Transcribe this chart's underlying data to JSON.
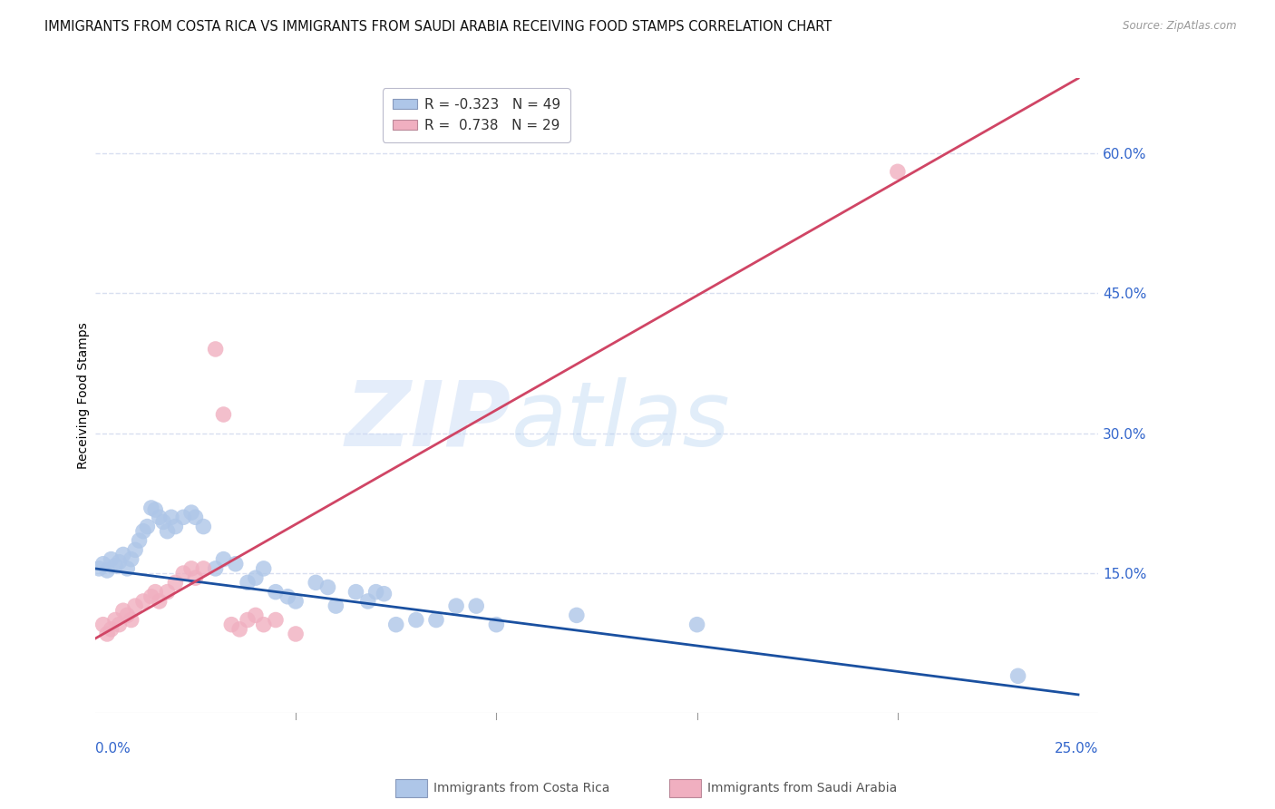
{
  "title": "IMMIGRANTS FROM COSTA RICA VS IMMIGRANTS FROM SAUDI ARABIA RECEIVING FOOD STAMPS CORRELATION CHART",
  "source": "Source: ZipAtlas.com",
  "ylabel": "Receiving Food Stamps",
  "xtick_left_label": "0.0%",
  "xtick_right_label": "25.0%",
  "ytick_vals": [
    0.0,
    0.15,
    0.3,
    0.45,
    0.6
  ],
  "ytick_labels": [
    "",
    "15.0%",
    "30.0%",
    "45.0%",
    "60.0%"
  ],
  "xlim": [
    0.0,
    0.25
  ],
  "ylim": [
    0.0,
    0.68
  ],
  "watermark_zip": "ZIP",
  "watermark_atlas": "atlas",
  "cr_color": "#aec6e8",
  "sa_color": "#f0afc0",
  "cr_line_color": "#1a50a0",
  "sa_line_color": "#d04565",
  "legend_cr_label": "R = -0.323   N = 49",
  "legend_sa_label": "R =  0.738   N = 29",
  "cr_line_x0": 0.0,
  "cr_line_y0": 0.155,
  "cr_line_x1": 0.245,
  "cr_line_y1": 0.02,
  "sa_line_x0": 0.0,
  "sa_line_y0": 0.08,
  "sa_line_x1": 0.245,
  "sa_line_y1": 0.68,
  "cr_points": [
    [
      0.001,
      0.155
    ],
    [
      0.002,
      0.16
    ],
    [
      0.003,
      0.153
    ],
    [
      0.004,
      0.165
    ],
    [
      0.005,
      0.158
    ],
    [
      0.006,
      0.162
    ],
    [
      0.007,
      0.17
    ],
    [
      0.008,
      0.155
    ],
    [
      0.009,
      0.165
    ],
    [
      0.01,
      0.175
    ],
    [
      0.011,
      0.185
    ],
    [
      0.012,
      0.195
    ],
    [
      0.013,
      0.2
    ],
    [
      0.014,
      0.22
    ],
    [
      0.015,
      0.218
    ],
    [
      0.016,
      0.21
    ],
    [
      0.017,
      0.205
    ],
    [
      0.018,
      0.195
    ],
    [
      0.019,
      0.21
    ],
    [
      0.02,
      0.2
    ],
    [
      0.022,
      0.21
    ],
    [
      0.024,
      0.215
    ],
    [
      0.025,
      0.21
    ],
    [
      0.027,
      0.2
    ],
    [
      0.03,
      0.155
    ],
    [
      0.032,
      0.165
    ],
    [
      0.035,
      0.16
    ],
    [
      0.038,
      0.14
    ],
    [
      0.04,
      0.145
    ],
    [
      0.042,
      0.155
    ],
    [
      0.045,
      0.13
    ],
    [
      0.048,
      0.125
    ],
    [
      0.05,
      0.12
    ],
    [
      0.055,
      0.14
    ],
    [
      0.058,
      0.135
    ],
    [
      0.06,
      0.115
    ],
    [
      0.065,
      0.13
    ],
    [
      0.068,
      0.12
    ],
    [
      0.07,
      0.13
    ],
    [
      0.072,
      0.128
    ],
    [
      0.075,
      0.095
    ],
    [
      0.08,
      0.1
    ],
    [
      0.085,
      0.1
    ],
    [
      0.09,
      0.115
    ],
    [
      0.095,
      0.115
    ],
    [
      0.1,
      0.095
    ],
    [
      0.12,
      0.105
    ],
    [
      0.15,
      0.095
    ],
    [
      0.23,
      0.04
    ]
  ],
  "sa_points": [
    [
      0.002,
      0.095
    ],
    [
      0.003,
      0.085
    ],
    [
      0.004,
      0.09
    ],
    [
      0.005,
      0.1
    ],
    [
      0.006,
      0.095
    ],
    [
      0.007,
      0.11
    ],
    [
      0.008,
      0.105
    ],
    [
      0.009,
      0.1
    ],
    [
      0.01,
      0.115
    ],
    [
      0.012,
      0.12
    ],
    [
      0.014,
      0.125
    ],
    [
      0.015,
      0.13
    ],
    [
      0.016,
      0.12
    ],
    [
      0.018,
      0.13
    ],
    [
      0.02,
      0.14
    ],
    [
      0.022,
      0.15
    ],
    [
      0.024,
      0.155
    ],
    [
      0.025,
      0.145
    ],
    [
      0.027,
      0.155
    ],
    [
      0.03,
      0.39
    ],
    [
      0.032,
      0.32
    ],
    [
      0.034,
      0.095
    ],
    [
      0.036,
      0.09
    ],
    [
      0.038,
      0.1
    ],
    [
      0.04,
      0.105
    ],
    [
      0.042,
      0.095
    ],
    [
      0.045,
      0.1
    ],
    [
      0.05,
      0.085
    ],
    [
      0.2,
      0.58
    ]
  ],
  "grid_color": "#d8dff0",
  "tick_color": "#3366cc",
  "bg_color": "#ffffff",
  "title_fontsize": 10.5,
  "tick_fontsize": 11,
  "ylabel_fontsize": 10,
  "marker_size": 160,
  "xtick_positions": [
    0.05,
    0.1,
    0.15,
    0.2
  ]
}
